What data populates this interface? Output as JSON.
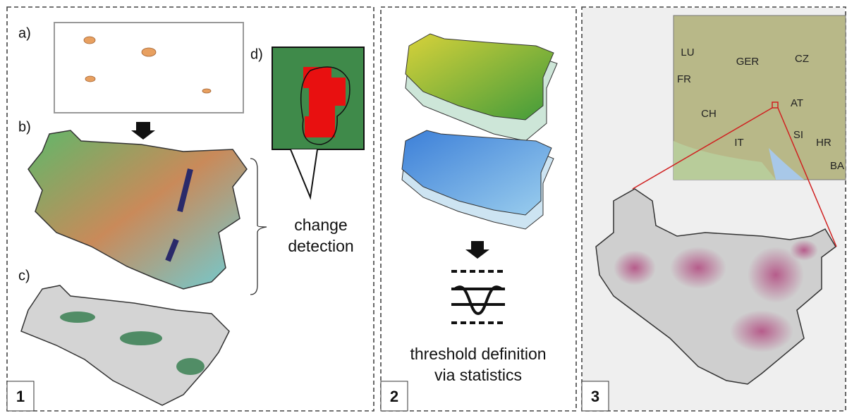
{
  "panels": [
    {
      "number": "1",
      "labels": [
        "a)",
        "b)",
        "c)",
        "d)"
      ],
      "caption": [
        "change",
        "detection"
      ]
    },
    {
      "number": "2",
      "caption": [
        "threshold definition",
        "via statistics"
      ]
    },
    {
      "number": "3",
      "countries": [
        "LU",
        "GER",
        "CZ",
        "FR",
        "AT",
        "CH",
        "SI",
        "IT",
        "HR",
        "BA"
      ]
    }
  ]
}
